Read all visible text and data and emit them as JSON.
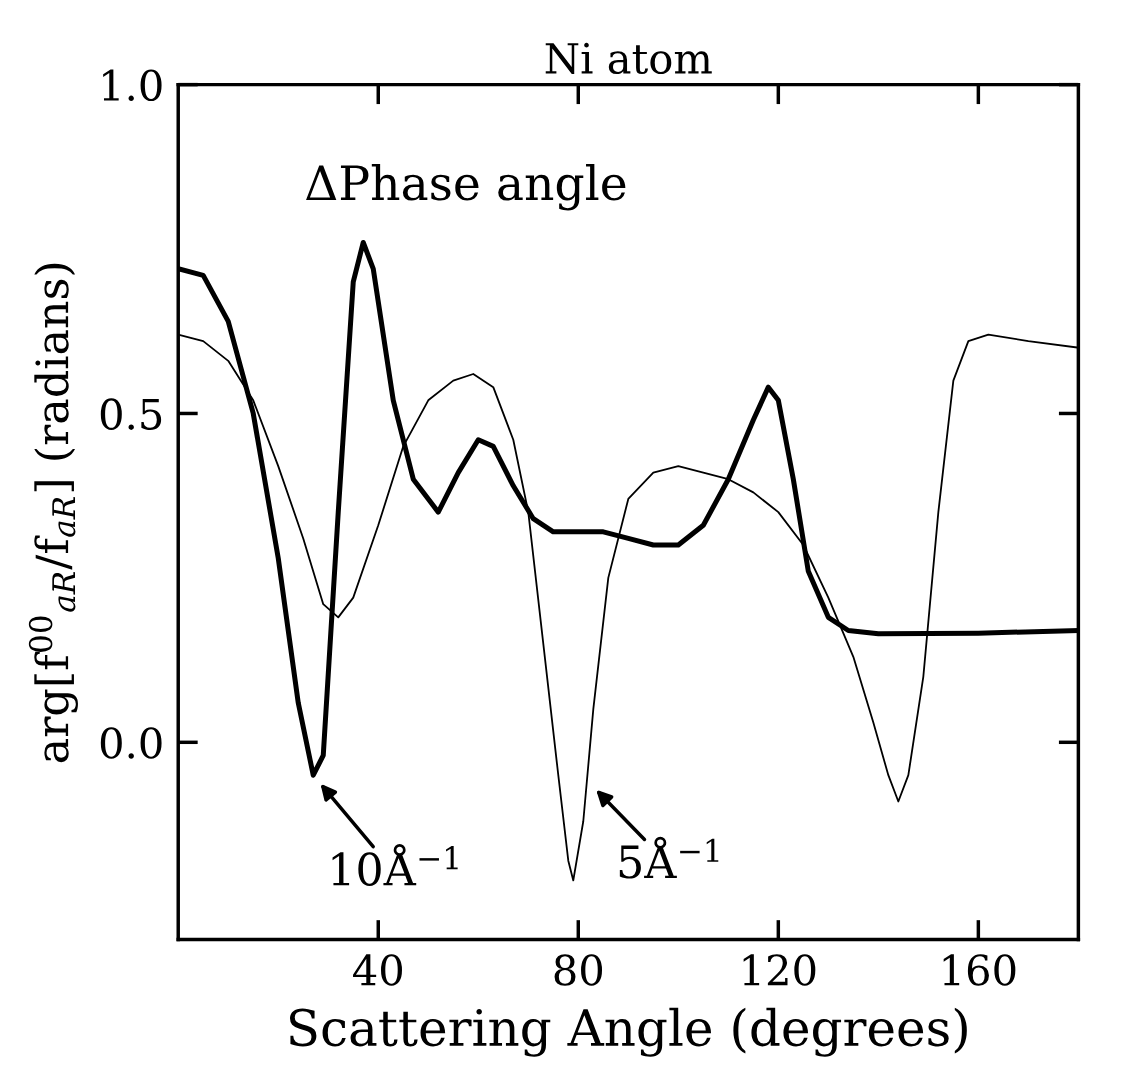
{
  "chart_data": {
    "type": "line",
    "title": "Ni atom",
    "xlabel": "Scattering Angle (degrees)",
    "ylabel": "arg[f$^{00}$$_{aR}$/f$_{aR}$] (radians)",
    "xlim": [
      0,
      180
    ],
    "ylim": [
      -0.3,
      1.0
    ],
    "xticks": [
      40,
      80,
      120,
      160
    ],
    "yticks": [
      {
        "value": 0,
        "label": "0.0"
      },
      {
        "value": 0.5,
        "label": "0.5"
      },
      {
        "value": 1.0,
        "label": "1.0"
      }
    ],
    "grid": false,
    "legend": false,
    "marker": "none",
    "line_style": "solid",
    "annotations": [
      "ΔPhase angle",
      {
        "text": "10Å$^{−1}$",
        "x": 27,
        "y": -0.05
      },
      {
        "text": "5Å$^{−1}$",
        "x": 82,
        "y": -0.06
      }
    ],
    "series": [
      {
        "color": "#000000",
        "x": [
          0,
          5,
          10,
          15,
          20,
          24,
          27,
          29,
          32,
          35,
          37,
          39,
          43,
          47,
          52,
          56,
          60,
          63,
          67,
          71,
          75,
          80,
          85,
          90,
          95,
          100,
          105,
          110,
          115,
          118,
          120,
          123,
          126,
          130,
          134,
          140,
          160,
          180
        ],
        "values": [
          0.72,
          0.71,
          0.64,
          0.5,
          0.28,
          0.06,
          -0.05,
          -0.02,
          0.35,
          0.7,
          0.76,
          0.72,
          0.52,
          0.4,
          0.35,
          0.41,
          0.46,
          0.45,
          0.39,
          0.34,
          0.32,
          0.32,
          0.32,
          0.31,
          0.3,
          0.3,
          0.33,
          0.4,
          0.49,
          0.54,
          0.52,
          0.4,
          0.26,
          0.19,
          0.17,
          0.165,
          0.166,
          0.17
        ]
      },
      {
        "color": "#000000",
        "x": [
          0,
          5,
          10,
          15,
          20,
          25,
          29,
          32,
          35,
          40,
          45,
          50,
          55,
          59,
          63,
          67,
          70,
          73,
          76,
          78,
          79,
          81,
          83,
          86,
          90,
          95,
          100,
          105,
          110,
          115,
          120,
          125,
          130,
          135,
          139,
          142,
          144,
          146,
          149,
          152,
          155,
          158,
          162,
          170,
          180
        ],
        "values": [
          0.62,
          0.61,
          0.58,
          0.52,
          0.42,
          0.31,
          0.21,
          0.19,
          0.22,
          0.33,
          0.45,
          0.52,
          0.55,
          0.56,
          0.54,
          0.46,
          0.35,
          0.15,
          -0.05,
          -0.18,
          -0.21,
          -0.12,
          0.05,
          0.25,
          0.37,
          0.41,
          0.42,
          0.41,
          0.4,
          0.38,
          0.35,
          0.3,
          0.22,
          0.13,
          0.03,
          -0.05,
          -0.09,
          -0.05,
          0.1,
          0.35,
          0.55,
          0.61,
          0.62,
          0.61,
          0.6
        ]
      }
    ]
  }
}
